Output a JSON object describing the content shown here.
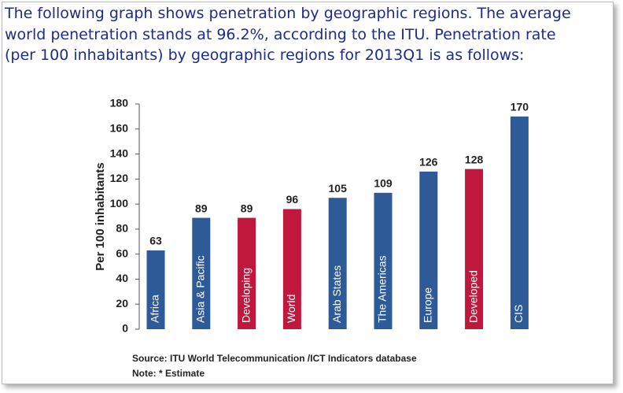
{
  "intro": [
    "The following graph shows penetration by geographic regions. The average",
    "world penetration stands at 96.2%, according to the ITU. Penetration rate",
    "(per 100 inhabitants) by geographic regions for 2013Q1 is as follows:"
  ],
  "chart_data": {
    "type": "bar",
    "y_label": "Per 100 inhabitants",
    "categories": [
      "Africa",
      "Asia & Pacific",
      "Developing",
      "World",
      "Arab States",
      "The Americas",
      "Europe",
      "Developed",
      "CIS"
    ],
    "values": [
      63,
      89,
      89,
      96,
      105,
      109,
      126,
      128,
      170
    ],
    "colors": [
      "#2e5a98",
      "#2e5a98",
      "#c0183c",
      "#c0183c",
      "#2e5a98",
      "#2e5a98",
      "#2e5a98",
      "#c0183c",
      "#2e5a98"
    ],
    "ylim": [
      0,
      180
    ],
    "yticks": [
      0,
      20,
      40,
      60,
      80,
      100,
      120,
      140,
      160,
      180
    ],
    "grid": false,
    "source": "Source:  ITU World Telecommunication /ICT Indicators database",
    "note": "Note: * Estimate"
  }
}
